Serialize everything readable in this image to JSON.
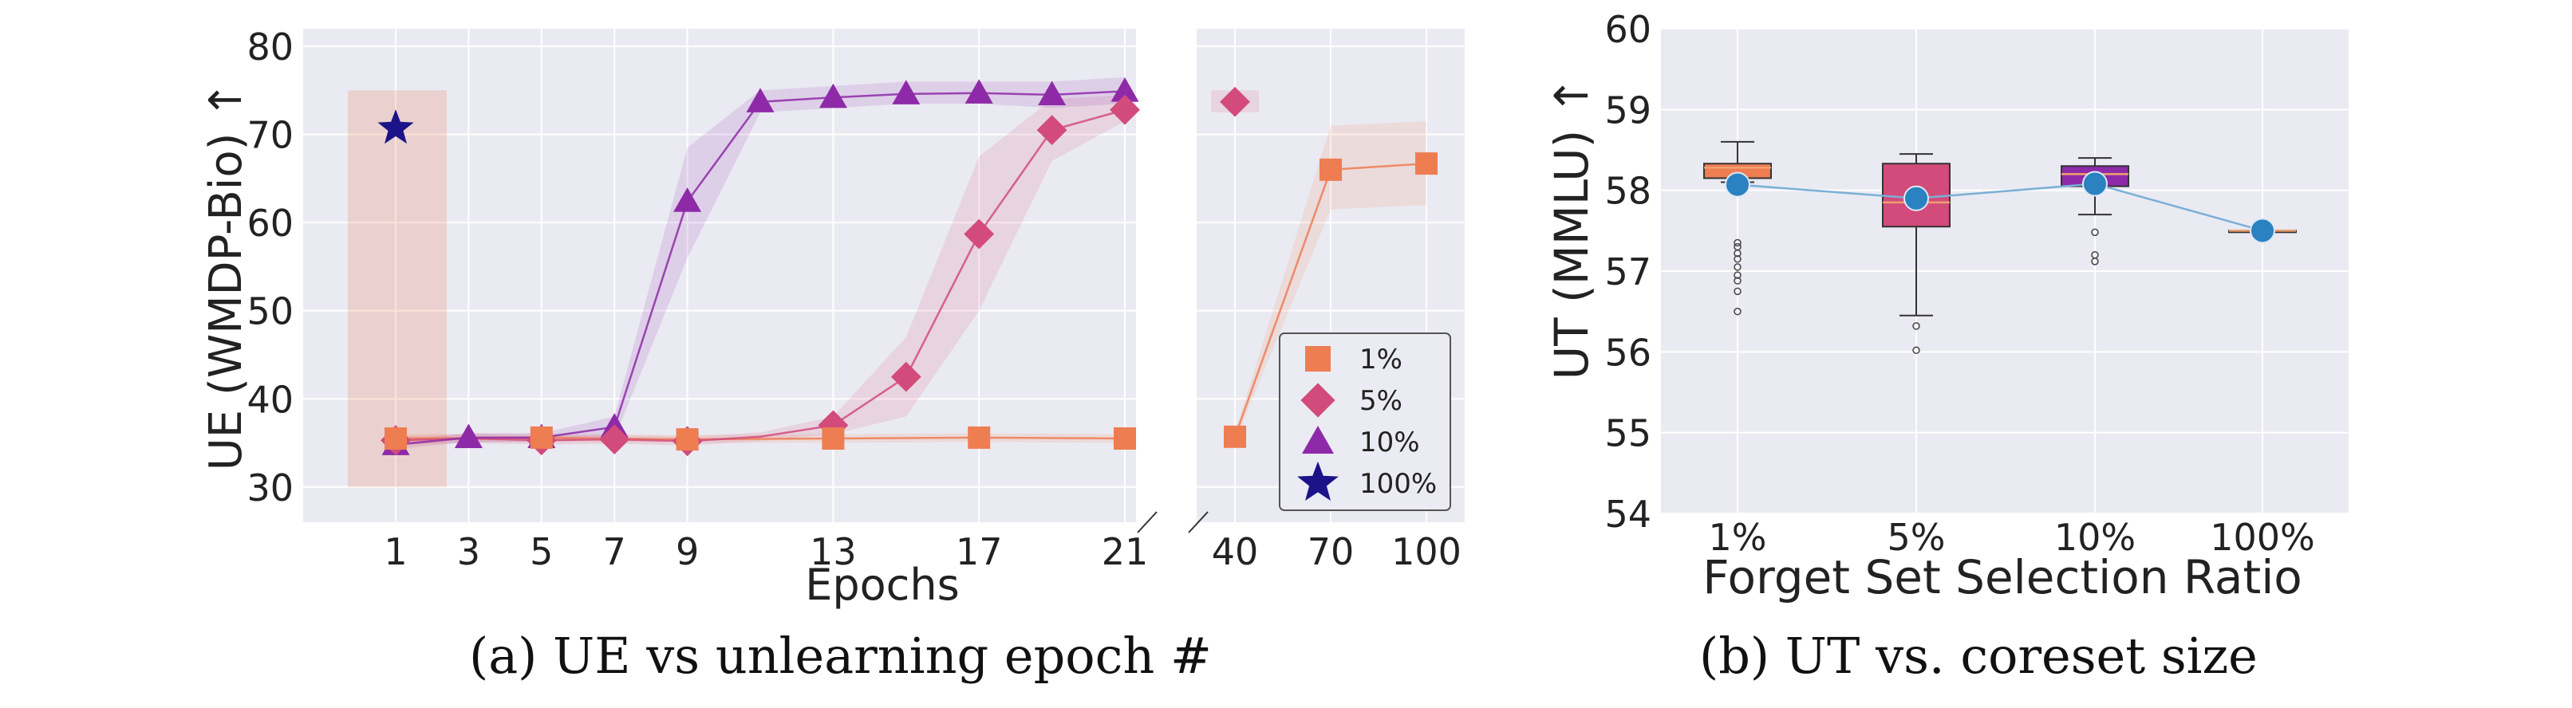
{
  "colors": {
    "bg_plot": "#eaeaf2",
    "grid": "#ffffff",
    "s1": "#ee7d52",
    "s5": "#d24b7b",
    "s10": "#8e2aa8",
    "s100": "#1c1389",
    "point": "#2a82c0",
    "line": "#7ab0d6"
  },
  "captions": {
    "a": "(a) UE vs unlearning epoch #",
    "b": "(b) UT vs. coreset size"
  },
  "chart_data": [
    {
      "type": "line",
      "panel": "a",
      "xlabel": "Epochs",
      "ylabel": "UE (WMDP-Bio) ↑",
      "ylim": [
        26,
        82
      ],
      "yticks": [
        30,
        40,
        50,
        60,
        70,
        80
      ],
      "xticks_left": [
        1,
        3,
        5,
        7,
        9,
        13,
        17,
        21
      ],
      "xticks_right": [
        40,
        70,
        100
      ],
      "broken_axis": true,
      "grid": true,
      "legend_position": "lower-right",
      "series": [
        {
          "name": "1%",
          "marker": "square",
          "color_key": "s1",
          "x": [
            1,
            5,
            9,
            13,
            17,
            21,
            40,
            70,
            100
          ],
          "y": [
            35.5,
            35.6,
            35.4,
            35.5,
            35.6,
            35.5,
            35.7,
            66.0,
            66.7
          ],
          "band_lo": [
            35.0,
            35.1,
            35.0,
            35.0,
            35.1,
            35.0,
            35.2,
            61.5,
            62.0
          ],
          "band_hi": [
            36.0,
            36.1,
            35.9,
            36.0,
            36.1,
            36.0,
            36.2,
            71.0,
            71.5
          ]
        },
        {
          "name": "5%",
          "marker": "diamond",
          "color_key": "s5",
          "x": [
            1,
            3,
            5,
            7,
            9,
            11,
            13,
            15,
            17,
            19,
            21,
            40
          ],
          "y": [
            35.3,
            35.5,
            35.3,
            35.4,
            35.2,
            35.7,
            37.0,
            42.5,
            58.7,
            70.5,
            72.8,
            73.7
          ],
          "band_lo": [
            34.8,
            35.0,
            34.8,
            34.9,
            34.7,
            35.2,
            36.0,
            38.0,
            50.0,
            67.0,
            71.5,
            72.5
          ],
          "band_hi": [
            35.8,
            36.0,
            35.8,
            35.9,
            35.7,
            36.2,
            38.0,
            47.0,
            67.5,
            74.0,
            74.5,
            75.0
          ]
        },
        {
          "name": "10%",
          "marker": "triangle",
          "color_key": "s10",
          "x": [
            1,
            3,
            5,
            7,
            9,
            11,
            13,
            15,
            17,
            19,
            21
          ],
          "y": [
            34.8,
            35.6,
            35.6,
            36.8,
            62.4,
            73.7,
            74.2,
            74.6,
            74.7,
            74.5,
            74.9
          ],
          "band_lo": [
            34.3,
            35.1,
            35.1,
            35.5,
            56.0,
            72.5,
            73.0,
            73.5,
            73.5,
            73.0,
            73.5
          ],
          "band_hi": [
            35.3,
            36.1,
            36.1,
            38.0,
            68.5,
            75.0,
            75.5,
            76.0,
            76.0,
            76.0,
            76.5
          ]
        },
        {
          "name": "100%",
          "marker": "star",
          "color_key": "s100",
          "x": [
            1
          ],
          "y": [
            70.7
          ],
          "band_lo": [
            30.0
          ],
          "band_hi": [
            75.0
          ]
        }
      ]
    },
    {
      "type": "box",
      "panel": "b",
      "xlabel": "Forget Set Selection Ratio",
      "ylabel": "UT (MMLU) ↑",
      "ylim": [
        54,
        60
      ],
      "yticks": [
        54,
        55,
        56,
        57,
        58,
        59,
        60
      ],
      "grid": true,
      "categories": [
        "1%",
        "5%",
        "10%",
        "100%"
      ],
      "means": [
        58.07,
        57.9,
        58.08,
        57.5
      ],
      "boxes": [
        {
          "color_key": "s1",
          "whisker_lo": 58.1,
          "q1": 58.15,
          "median": 58.28,
          "q3": 58.33,
          "whisker_hi": 58.6,
          "outliers": [
            57.35,
            57.3,
            57.22,
            57.15,
            57.05,
            56.95,
            56.88,
            56.75,
            56.5
          ]
        },
        {
          "color_key": "s5",
          "whisker_lo": 56.45,
          "q1": 57.55,
          "median": 57.85,
          "q3": 58.33,
          "whisker_hi": 58.45,
          "outliers": [
            56.32,
            56.02
          ]
        },
        {
          "color_key": "s10",
          "whisker_lo": 57.7,
          "q1": 58.05,
          "median": 58.2,
          "q3": 58.3,
          "whisker_hi": 58.4,
          "outliers": [
            57.48,
            57.2,
            57.12
          ]
        },
        {
          "color_key": "s100",
          "whisker_lo": 57.5,
          "q1": 57.5,
          "median": 57.5,
          "q3": 57.5,
          "whisker_hi": 57.5,
          "outliers": []
        }
      ]
    }
  ]
}
